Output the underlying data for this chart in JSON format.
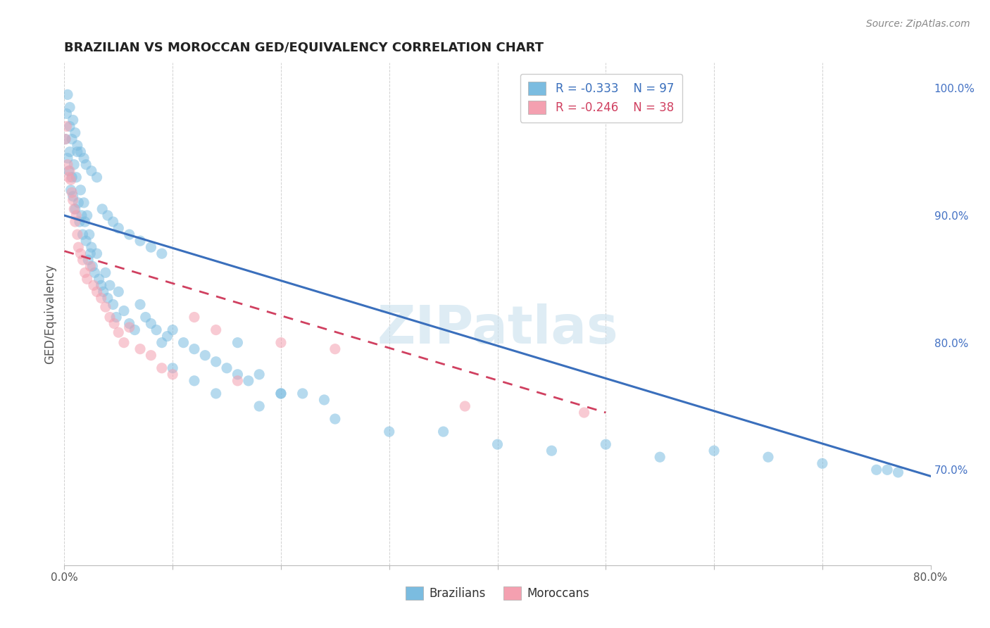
{
  "title": "BRAZILIAN VS MOROCCAN GED/EQUIVALENCY CORRELATION CHART",
  "source_text": "Source: ZipAtlas.com",
  "ylabel": "GED/Equivalency",
  "xlim": [
    0.0,
    0.8
  ],
  "ylim": [
    0.625,
    1.02
  ],
  "right_yticks": [
    0.7,
    0.8,
    0.9,
    1.0
  ],
  "right_yticklabels": [
    "70.0%",
    "80.0%",
    "90.0%",
    "100.0%"
  ],
  "xticks": [
    0.0,
    0.1,
    0.2,
    0.3,
    0.4,
    0.5,
    0.6,
    0.7,
    0.8
  ],
  "xticklabels": [
    "0.0%",
    "",
    "",
    "",
    "",
    "",
    "",
    "",
    "80.0%"
  ],
  "legend_r1": "R = -0.333",
  "legend_n1": "N = 97",
  "legend_r2": "R = -0.246",
  "legend_n2": "N = 38",
  "color_brazil": "#7bbce0",
  "color_morocco": "#f4a0b0",
  "color_brazil_line": "#3a6fbc",
  "color_morocco_line": "#d04060",
  "watermark": "ZIPatlas",
  "brazil_line_x": [
    0.0,
    0.8
  ],
  "brazil_line_y": [
    0.9,
    0.695
  ],
  "morocco_line_x": [
    0.0,
    0.5
  ],
  "morocco_line_y": [
    0.872,
    0.745
  ],
  "brazil_x": [
    0.001,
    0.002,
    0.003,
    0.004,
    0.005,
    0.005,
    0.006,
    0.007,
    0.007,
    0.008,
    0.009,
    0.01,
    0.011,
    0.012,
    0.013,
    0.014,
    0.015,
    0.016,
    0.017,
    0.018,
    0.019,
    0.02,
    0.021,
    0.022,
    0.023,
    0.024,
    0.025,
    0.026,
    0.028,
    0.03,
    0.032,
    0.034,
    0.036,
    0.038,
    0.04,
    0.042,
    0.045,
    0.048,
    0.05,
    0.055,
    0.06,
    0.065,
    0.07,
    0.075,
    0.08,
    0.085,
    0.09,
    0.095,
    0.1,
    0.11,
    0.12,
    0.13,
    0.14,
    0.15,
    0.16,
    0.17,
    0.18,
    0.2,
    0.22,
    0.24,
    0.003,
    0.005,
    0.008,
    0.01,
    0.012,
    0.015,
    0.018,
    0.02,
    0.025,
    0.03,
    0.035,
    0.04,
    0.045,
    0.05,
    0.06,
    0.07,
    0.08,
    0.09,
    0.1,
    0.12,
    0.14,
    0.16,
    0.18,
    0.2,
    0.25,
    0.3,
    0.35,
    0.4,
    0.45,
    0.5,
    0.55,
    0.6,
    0.65,
    0.7,
    0.75,
    0.76,
    0.77
  ],
  "brazil_y": [
    0.96,
    0.98,
    0.945,
    0.935,
    0.97,
    0.95,
    0.92,
    0.96,
    0.93,
    0.915,
    0.94,
    0.905,
    0.93,
    0.95,
    0.91,
    0.895,
    0.92,
    0.9,
    0.885,
    0.91,
    0.895,
    0.88,
    0.9,
    0.865,
    0.885,
    0.87,
    0.875,
    0.86,
    0.855,
    0.87,
    0.85,
    0.845,
    0.84,
    0.855,
    0.835,
    0.845,
    0.83,
    0.82,
    0.84,
    0.825,
    0.815,
    0.81,
    0.83,
    0.82,
    0.815,
    0.81,
    0.8,
    0.805,
    0.81,
    0.8,
    0.795,
    0.79,
    0.785,
    0.78,
    0.775,
    0.77,
    0.775,
    0.76,
    0.76,
    0.755,
    0.995,
    0.985,
    0.975,
    0.965,
    0.955,
    0.95,
    0.945,
    0.94,
    0.935,
    0.93,
    0.905,
    0.9,
    0.895,
    0.89,
    0.885,
    0.88,
    0.875,
    0.87,
    0.78,
    0.77,
    0.76,
    0.8,
    0.75,
    0.76,
    0.74,
    0.73,
    0.73,
    0.72,
    0.715,
    0.72,
    0.71,
    0.715,
    0.71,
    0.705,
    0.7,
    0.7,
    0.698
  ],
  "morocco_x": [
    0.001,
    0.002,
    0.003,
    0.004,
    0.005,
    0.006,
    0.007,
    0.008,
    0.009,
    0.01,
    0.011,
    0.012,
    0.013,
    0.015,
    0.017,
    0.019,
    0.021,
    0.024,
    0.027,
    0.03,
    0.034,
    0.038,
    0.042,
    0.046,
    0.05,
    0.055,
    0.06,
    0.07,
    0.08,
    0.09,
    0.1,
    0.12,
    0.14,
    0.16,
    0.2,
    0.25,
    0.37,
    0.48
  ],
  "morocco_y": [
    0.96,
    0.97,
    0.94,
    0.93,
    0.935,
    0.928,
    0.918,
    0.912,
    0.905,
    0.895,
    0.9,
    0.885,
    0.875,
    0.87,
    0.865,
    0.855,
    0.85,
    0.86,
    0.845,
    0.84,
    0.835,
    0.828,
    0.82,
    0.815,
    0.808,
    0.8,
    0.812,
    0.795,
    0.79,
    0.78,
    0.775,
    0.82,
    0.81,
    0.77,
    0.8,
    0.795,
    0.75,
    0.745
  ]
}
